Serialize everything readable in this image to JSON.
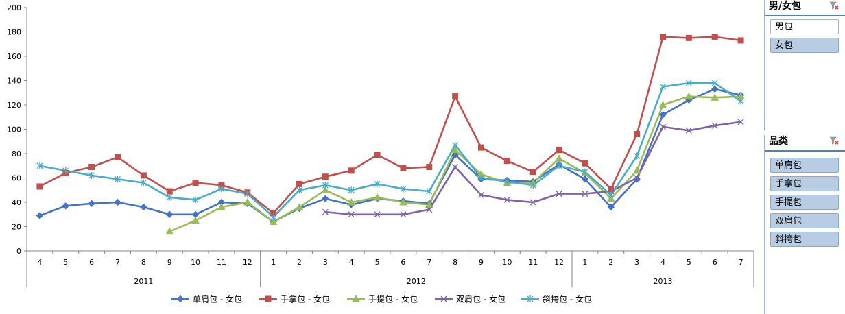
{
  "chart_data": {
    "type": "line",
    "ylim": [
      0,
      200
    ],
    "yticks": [
      0,
      20,
      40,
      60,
      80,
      100,
      120,
      140,
      160,
      180,
      200
    ],
    "categories": [
      "4",
      "5",
      "6",
      "7",
      "8",
      "9",
      "10",
      "11",
      "12",
      "1",
      "2",
      "3",
      "4",
      "5",
      "6",
      "7",
      "8",
      "9",
      "10",
      "11",
      "12",
      "1",
      "2",
      "3",
      "4",
      "5",
      "6",
      "7"
    ],
    "groups": [
      {
        "label": "2011",
        "count": 9
      },
      {
        "label": "2012",
        "count": 12
      },
      {
        "label": "2013",
        "count": 7
      }
    ],
    "grid": false,
    "legend": "bottom",
    "series": [
      {
        "name": "单肩包 - 女包",
        "color": "#4572c4",
        "marker": "diamond",
        "values": [
          29,
          37,
          39,
          40,
          36,
          30,
          30,
          40,
          39,
          24,
          35,
          43,
          38,
          43,
          41,
          39,
          79,
          59,
          58,
          57,
          71,
          59,
          36,
          59,
          112,
          124,
          133,
          128
        ]
      },
      {
        "name": "手拿包 - 女包",
        "color": "#c0504d",
        "marker": "square",
        "values": [
          53,
          64,
          69,
          77,
          62,
          49,
          56,
          54,
          48,
          31,
          55,
          61,
          66,
          79,
          68,
          69,
          127,
          85,
          74,
          65,
          83,
          72,
          51,
          96,
          176,
          175,
          176,
          173
        ]
      },
      {
        "name": "手提包 - 女包",
        "color": "#9bbb59",
        "marker": "triangle",
        "values": [
          null,
          null,
          null,
          null,
          null,
          16,
          25,
          36,
          40,
          24,
          36,
          50,
          40,
          44,
          40,
          38,
          83,
          63,
          56,
          56,
          76,
          64,
          43,
          66,
          120,
          127,
          126,
          127
        ]
      },
      {
        "name": "双肩包 - 女包",
        "color": "#8064a2",
        "marker": "x",
        "values": [
          null,
          null,
          null,
          null,
          null,
          null,
          null,
          null,
          null,
          null,
          null,
          32,
          30,
          30,
          30,
          34,
          69,
          46,
          42,
          40,
          47,
          47,
          49,
          60,
          102,
          99,
          103,
          106
        ]
      },
      {
        "name": "斜挎包 - 女包",
        "color": "#4bacc6",
        "marker": "star",
        "values": [
          70,
          66,
          62,
          59,
          56,
          44,
          42,
          51,
          47,
          28,
          50,
          54,
          50,
          55,
          51,
          49,
          87,
          60,
          57,
          54,
          70,
          65,
          46,
          78,
          135,
          138,
          138,
          123
        ]
      }
    ]
  },
  "slicers": [
    {
      "title": "男/女包",
      "items": [
        {
          "label": "男包",
          "selected": false
        },
        {
          "label": "女包",
          "selected": true
        }
      ]
    },
    {
      "title": "品类",
      "items": [
        {
          "label": "单肩包",
          "selected": true
        },
        {
          "label": "手拿包",
          "selected": true
        },
        {
          "label": "手提包",
          "selected": true
        },
        {
          "label": "双肩包",
          "selected": true
        },
        {
          "label": "斜挎包",
          "selected": true
        }
      ]
    }
  ]
}
